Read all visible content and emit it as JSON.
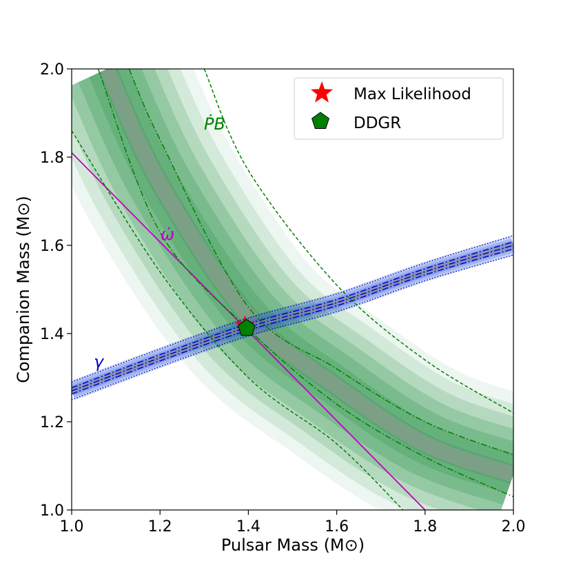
{
  "chart_data": {
    "type": "line",
    "title": "",
    "xlabel": "Pulsar Mass (M⊙)",
    "ylabel": "Companion Mass (M⊙)",
    "xlim": [
      1.0,
      2.0
    ],
    "ylim": [
      1.0,
      2.0
    ],
    "xticks": [
      "1.0",
      "1.2",
      "1.4",
      "1.6",
      "1.8",
      "2.0"
    ],
    "yticks": [
      "1.0",
      "1.2",
      "1.4",
      "1.6",
      "1.8",
      "2.0"
    ],
    "grid": false,
    "legend_position": "top-right",
    "legend": [
      {
        "label": "Max Likelihood",
        "marker": "star",
        "color": "#ff0000"
      },
      {
        "label": "DDGR",
        "marker": "pentagon",
        "color": "#008000"
      }
    ],
    "points": {
      "max_likelihood": {
        "x": 1.392,
        "y": 1.418
      },
      "ddgr": {
        "x": 1.396,
        "y": 1.412
      }
    },
    "curve_labels": {
      "pbdot": "ṖB",
      "omdot": "ω̇",
      "gamma": "γ"
    },
    "colors": {
      "pbdot": "#008000",
      "omdot": "#bf00bf",
      "gamma": "#0000cc",
      "pbdot_band": "#1a8a3a",
      "gamma_band": "#1f4fd6"
    },
    "series": [
      {
        "id": "omdot",
        "style": "solid",
        "x": [
          1.0,
          1.8
        ],
        "y": [
          1.81,
          1.0
        ]
      },
      {
        "id": "gamma_center",
        "style": "dashdot",
        "x": [
          1.0,
          1.2,
          1.4,
          1.6,
          1.8,
          2.0
        ],
        "y": [
          1.27,
          1.345,
          1.415,
          1.47,
          1.54,
          1.6
        ]
      },
      {
        "id": "gamma_upper_1",
        "style": "dashdot",
        "x": [
          1.0,
          1.2,
          1.4,
          1.6,
          1.8,
          2.0
        ],
        "y": [
          1.277,
          1.352,
          1.422,
          1.477,
          1.547,
          1.608
        ]
      },
      {
        "id": "gamma_lower_1",
        "style": "dashdot",
        "x": [
          1.0,
          1.2,
          1.4,
          1.6,
          1.8,
          2.0
        ],
        "y": [
          1.263,
          1.338,
          1.408,
          1.463,
          1.533,
          1.592
        ]
      },
      {
        "id": "gamma_upper_2",
        "style": "dotted",
        "x": [
          1.0,
          1.2,
          1.4,
          1.6,
          1.8,
          2.0
        ],
        "y": [
          1.29,
          1.365,
          1.435,
          1.49,
          1.56,
          1.622
        ]
      },
      {
        "id": "gamma_lower_2",
        "style": "dotted",
        "x": [
          1.0,
          1.2,
          1.4,
          1.6,
          1.8,
          2.0
        ],
        "y": [
          1.25,
          1.325,
          1.395,
          1.45,
          1.52,
          1.578
        ]
      },
      {
        "id": "pbdot_upper_1",
        "style": "dashdot",
        "x": [
          1.13,
          1.2,
          1.4,
          1.6,
          1.8,
          2.0
        ],
        "y": [
          2.0,
          1.84,
          1.46,
          1.32,
          1.2,
          1.125
        ]
      },
      {
        "id": "pbdot_lower_1",
        "style": "dashdot",
        "x": [
          1.06,
          1.2,
          1.4,
          1.6,
          1.8,
          2.0
        ],
        "y": [
          2.0,
          1.63,
          1.41,
          1.24,
          1.12,
          1.03
        ]
      },
      {
        "id": "pbdot_upper_2",
        "style": "dashed",
        "x": [
          1.3,
          1.4,
          1.6,
          1.8,
          2.0
        ],
        "y": [
          2.0,
          1.77,
          1.51,
          1.34,
          1.22
        ]
      },
      {
        "id": "pbdot_lower_2",
        "style": "dashed",
        "x": [
          1.0,
          1.2,
          1.4,
          1.6,
          1.75
        ],
        "y": [
          1.86,
          1.54,
          1.3,
          1.15,
          1.0
        ]
      }
    ],
    "bands": [
      {
        "id": "pbdot_band",
        "center_x": [
          1.08,
          1.2,
          1.4,
          1.6,
          1.8,
          2.0
        ],
        "center_y": [
          2.0,
          1.74,
          1.44,
          1.28,
          1.15,
          1.08
        ],
        "halfwidth_x": 0.18
      },
      {
        "id": "gamma_band",
        "center_x": [
          1.0,
          1.2,
          1.4,
          1.6,
          1.8,
          2.0
        ],
        "center_y": [
          1.27,
          1.345,
          1.415,
          1.47,
          1.54,
          1.6
        ],
        "halfwidth_y": 0.022
      }
    ]
  }
}
